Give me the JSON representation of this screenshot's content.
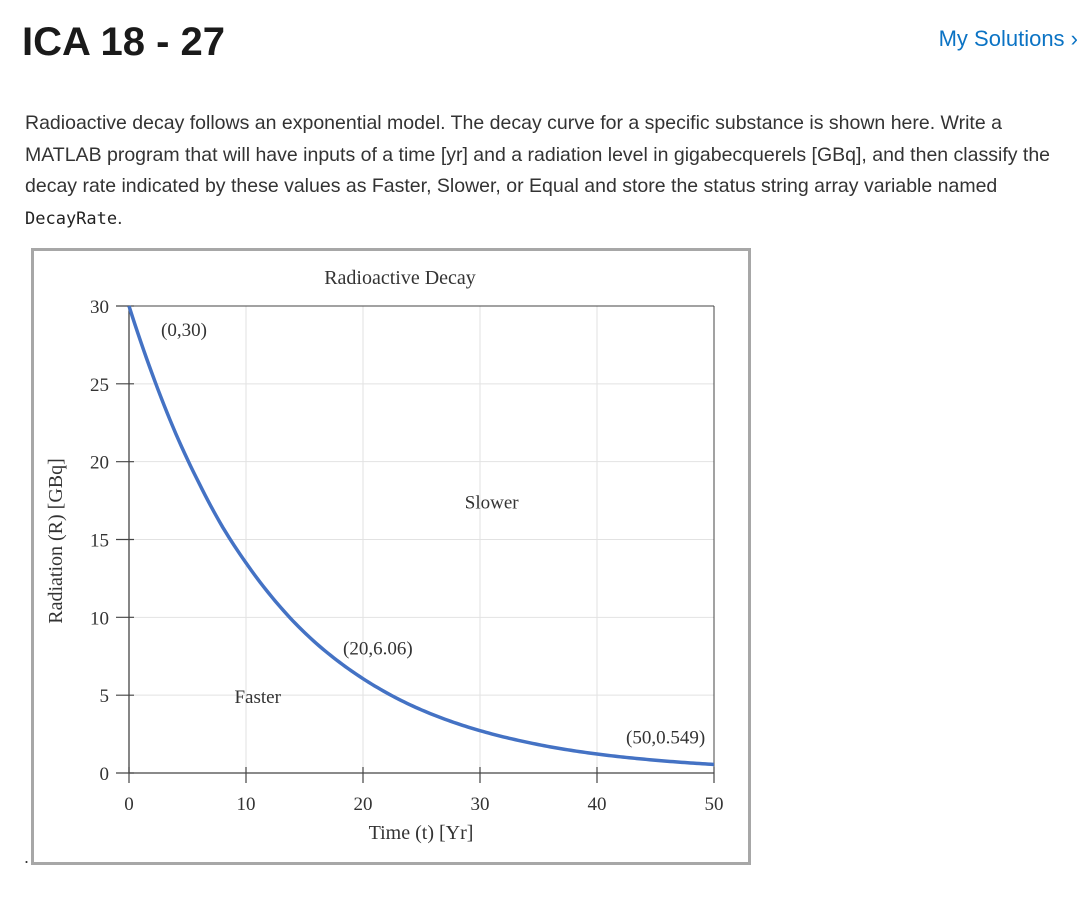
{
  "header": {
    "title": "ICA 18 - 27",
    "my_solutions_label": "My Solutions ›"
  },
  "problem": {
    "text_before_code": "Radioactive decay follows an exponential model. The decay curve for a specific substance is shown here. Write a MATLAB program that will have inputs of a time [yr] and a radiation level in gigabecquerels [GBq], and then classify the decay rate indicated by these values as Faster, Slower, or Equal and store the status string array variable named ",
    "code_var": "DecayRate",
    "text_after_code": ".",
    "trailing": "."
  },
  "colors": {
    "link": "#0b73c4",
    "curve": "#4472c4",
    "frame": "#a7a7a7"
  },
  "chart_data": {
    "type": "line",
    "title": "Radioactive Decay",
    "xlabel": "Time (t) [Yr]",
    "ylabel": "Radiation (R) [GBq]",
    "xlim": [
      0,
      50
    ],
    "ylim": [
      0,
      30
    ],
    "xticks": [
      0,
      10,
      20,
      30,
      40,
      50
    ],
    "yticks": [
      0,
      5,
      10,
      15,
      20,
      25,
      30
    ],
    "grid": true,
    "series": [
      {
        "model": "R = 30 * exp(-0.08 * t)",
        "x": [
          0,
          2,
          4,
          6,
          8,
          10,
          12,
          14,
          16,
          18,
          20,
          22,
          24,
          26,
          28,
          30,
          32,
          34,
          36,
          38,
          40,
          42,
          44,
          46,
          48,
          50
        ],
        "y": [
          30,
          25.6,
          21.8,
          18.6,
          15.8,
          13.5,
          11.5,
          9.78,
          8.33,
          7.11,
          6.06,
          5.16,
          4.39,
          3.74,
          3.19,
          2.72,
          2.32,
          1.98,
          1.68,
          1.43,
          1.22,
          1.04,
          0.889,
          0.757,
          0.645,
          0.549
        ]
      }
    ],
    "point_labels": [
      {
        "x": 0,
        "y": 30,
        "text": "(0,30)"
      },
      {
        "x": 20,
        "y": 6.06,
        "text": "(20,6.06)"
      },
      {
        "x": 50,
        "y": 0.549,
        "text": "(50,0.549)"
      }
    ],
    "region_labels": [
      {
        "x": 31,
        "y": 17,
        "text": "Slower"
      },
      {
        "x": 11,
        "y": 4.5,
        "text": "Faster"
      }
    ]
  }
}
